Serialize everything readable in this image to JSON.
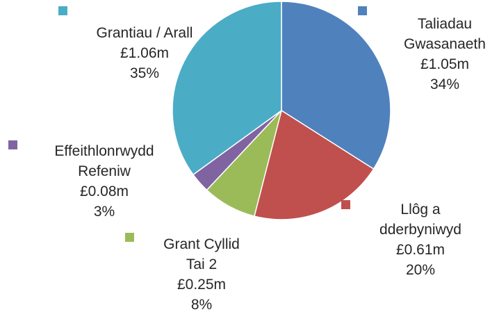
{
  "chart_data": {
    "type": "pie",
    "title": "",
    "slices": [
      {
        "name": "Taliadau Gwasanaeth",
        "name_lines": [
          "Taliadau",
          "Gwasanaeth"
        ],
        "amount": "£1.05m",
        "percent_label": "34%",
        "value": 34,
        "color": "#4F81BD"
      },
      {
        "name": "Llôg a dderbyniwyd",
        "name_lines": [
          "Llôg a",
          "dderbyniwyd"
        ],
        "amount": "£0.61m",
        "percent_label": "20%",
        "value": 20,
        "color": "#C0504D"
      },
      {
        "name": "Grant Cyllid Tai 2",
        "name_lines": [
          "Grant Cyllid",
          "Tai 2"
        ],
        "amount": "£0.25m",
        "percent_label": "8%",
        "value": 8,
        "color": "#9BBB59"
      },
      {
        "name": "Effeithlonrwydd Refeniw",
        "name_lines": [
          "Effeithlonrwydd",
          "Refeniw"
        ],
        "amount": "£0.08m",
        "percent_label": "3%",
        "value": 3,
        "color": "#8064A2"
      },
      {
        "name": "Grantiau / Arall",
        "name_lines": [
          "Grantiau / Arall"
        ],
        "amount": "£1.06m",
        "percent_label": "35%",
        "value": 35,
        "color": "#4BACC6"
      }
    ]
  }
}
